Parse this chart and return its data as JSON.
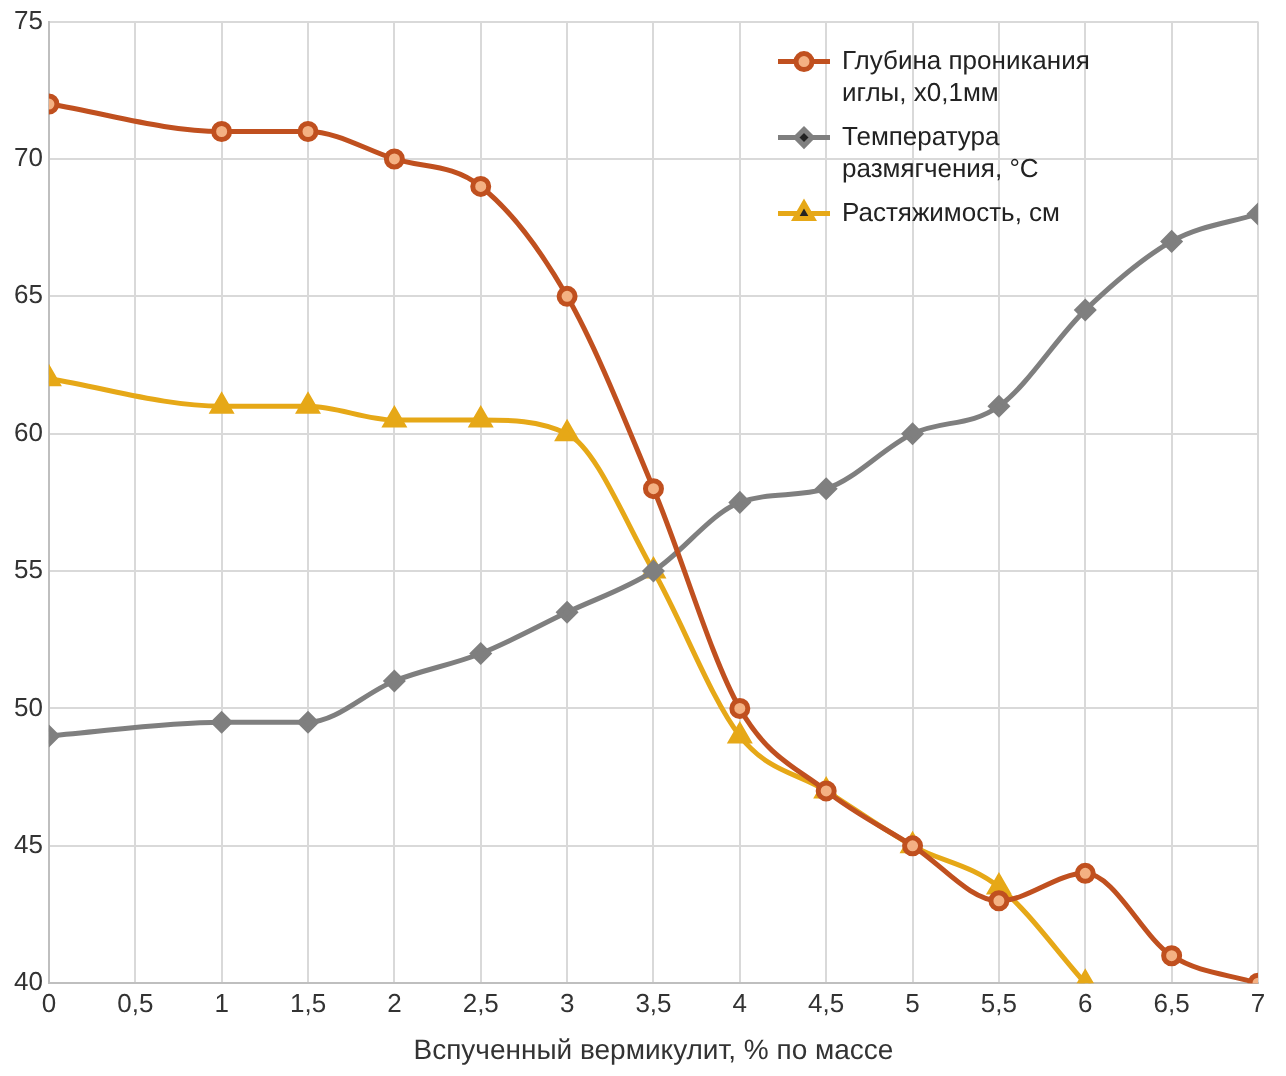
{
  "chart_data": {
    "type": "line",
    "xlabel": "Вспученный вермикулит, % по массе",
    "x": [
      0,
      1,
      1.5,
      2,
      2.5,
      3,
      3.5,
      4,
      4.5,
      5,
      5.5,
      6,
      6.5,
      7
    ],
    "series": [
      {
        "name": "Глубина проникания иглы, x0,1мм",
        "color": "#c0501f",
        "marker": "circle",
        "values": [
          72,
          71,
          71,
          70,
          69,
          65,
          58,
          50,
          47,
          45,
          43,
          44,
          41,
          40
        ]
      },
      {
        "name": "Температура размягчения, °С",
        "color": "#7f7f7f",
        "marker": "diamond",
        "values": [
          49,
          49.5,
          49.5,
          51,
          52,
          53.5,
          55,
          57.5,
          58,
          60,
          61,
          64.5,
          67,
          68
        ]
      },
      {
        "name": "Растяжимость, см",
        "color": "#e6a817",
        "marker": "triangle",
        "values": [
          62,
          61,
          61,
          60.5,
          60.5,
          60,
          55,
          49,
          47,
          45,
          43.5,
          40,
          null,
          null
        ]
      }
    ],
    "xlim": [
      0,
      7
    ],
    "xticks": [
      0,
      {
        "value": 0.5,
        "label": "0,5"
      },
      1,
      {
        "value": 1.5,
        "label": "1,5"
      },
      2,
      {
        "value": 2.5,
        "label": "2,5"
      },
      3,
      {
        "value": 3.5,
        "label": "3,5"
      },
      4,
      {
        "value": 4.5,
        "label": "4,5"
      },
      5,
      {
        "value": 5.5,
        "label": "5,5"
      },
      6,
      {
        "value": 6.5,
        "label": "6,5"
      },
      7
    ],
    "ylim": [
      40,
      75
    ],
    "yticks": [
      40,
      45,
      50,
      55,
      60,
      65,
      70,
      75
    ],
    "grid": true,
    "legend": "top right",
    "line_style": "solid"
  }
}
